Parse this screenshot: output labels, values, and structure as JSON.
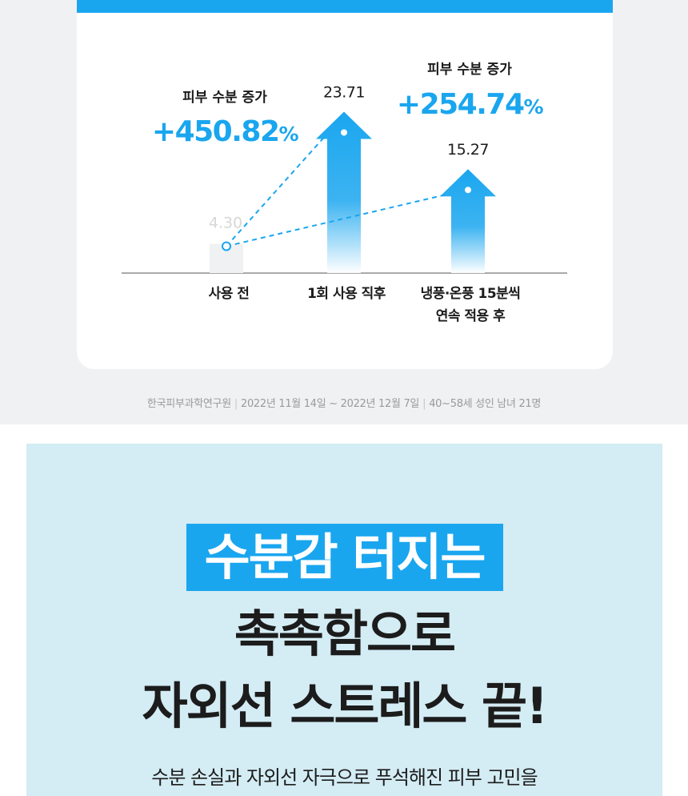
{
  "chart_data": {
    "type": "bar",
    "categories": [
      "사용 전",
      "1회 사용 직후",
      "냉풍·온풍 15분씩 연속 적용 후"
    ],
    "category_lines": [
      [
        "사용 전"
      ],
      [
        "1회 사용 직후"
      ],
      [
        "냉풍·온풍 15분씩",
        "연속 적용 후"
      ]
    ],
    "values": [
      4.3,
      23.71,
      15.27
    ],
    "value_labels": [
      "4.30",
      "23.71",
      "15.27"
    ],
    "ylim": [
      0,
      26
    ],
    "bar_style": [
      "flat",
      "arrow",
      "arrow"
    ],
    "colors": {
      "arrow": "#1aa6ef",
      "flat": "#f0f1f3",
      "text": "#1c1c1c",
      "accent": "#1aa6ef",
      "muted": "#d7d7d7"
    },
    "annotations": [
      {
        "label": "피부 수분 증가",
        "value": "+450.82",
        "unit": "%",
        "from": 0,
        "to": 1
      },
      {
        "label": "피부 수분 증가",
        "value": "+254.74",
        "unit": "%",
        "from": 0,
        "to": 2
      }
    ]
  },
  "source": {
    "org": "한국피부과학연구원",
    "period": "2022년 11월 14일 ~ 2022년 12월 7일",
    "subjects": "40~58세 성인 남녀 21명"
  },
  "promo": {
    "highlight": "수분감 터지는",
    "line2": "촉촉함으로",
    "line3": "자외선 스트레스 끝!",
    "subtext": "수분 손실과 자외선 자극으로 푸석해진 피부 고민을"
  }
}
